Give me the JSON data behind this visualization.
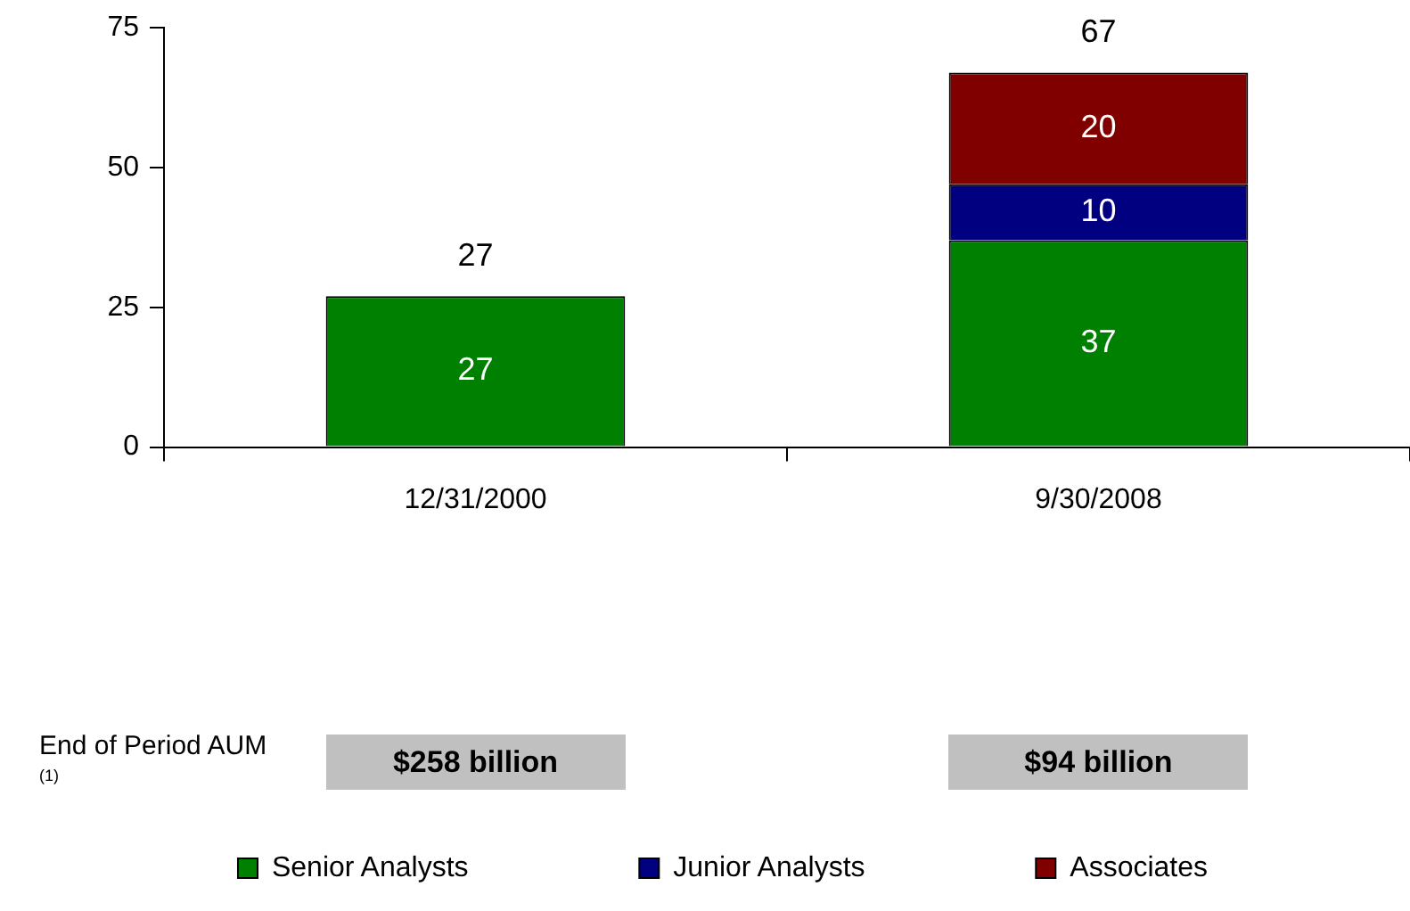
{
  "chart_data": {
    "type": "bar",
    "stacked": true,
    "categories": [
      "12/31/2000",
      "9/30/2008"
    ],
    "series": [
      {
        "name": "Senior Analysts",
        "color": "#008000",
        "values": [
          27,
          37
        ]
      },
      {
        "name": "Junior Analysts",
        "color": "#000080",
        "values": [
          null,
          10
        ]
      },
      {
        "name": "Associates",
        "color": "#800000",
        "values": [
          null,
          20
        ]
      }
    ],
    "ylim": [
      0,
      75
    ],
    "yticks": [
      0,
      25,
      50,
      75
    ],
    "grid": false,
    "legend": "bottom",
    "data_labels": true,
    "totals": [
      "27",
      "67"
    ],
    "annotations": [
      "End of Period AUM $^{(1)}$",
      "$258 billion",
      "$94 billion"
    ]
  }
}
